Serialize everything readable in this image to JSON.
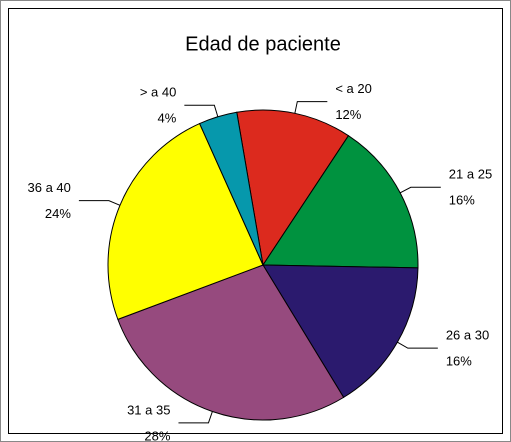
{
  "chart_data": {
    "type": "pie",
    "title": "Edad de paciente",
    "categories": [
      "< a 20",
      "21 a 25",
      "26 a 30",
      "31 a 35",
      "36 a 40",
      "> a 40"
    ],
    "values": [
      12,
      16,
      16,
      28,
      24,
      4
    ],
    "value_labels": [
      "12%",
      "16%",
      "16%",
      "28%",
      "24%",
      "4%"
    ],
    "colors": [
      "#dc2a1e",
      "#00923f",
      "#2b1a6e",
      "#964a7e",
      "#ffff00",
      "#0698ac"
    ]
  }
}
